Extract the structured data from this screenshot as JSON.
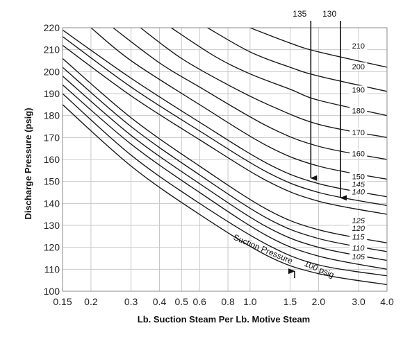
{
  "chart_data": {
    "type": "line",
    "title": "",
    "xlabel": "Lb. Suction Steam Per Lb. Motive Steam",
    "ylabel": "Discharge Pressure (psig)",
    "x_scale": "log",
    "xlim": [
      0.15,
      4.0
    ],
    "ylim": [
      100,
      220
    ],
    "grid": true,
    "x_ticks": [
      {
        "v": 0.15,
        "label": "0.15"
      },
      {
        "v": 0.2,
        "label": "0.2"
      },
      {
        "v": 0.3,
        "label": "0.3"
      },
      {
        "v": 0.4,
        "label": "0.4"
      },
      {
        "v": 0.5,
        "label": "0.5"
      },
      {
        "v": 0.6,
        "label": "0.6"
      },
      {
        "v": 0.8,
        "label": "0.8"
      },
      {
        "v": 1.0,
        "label": "1.0"
      },
      {
        "v": 1.5,
        "label": "1.5"
      },
      {
        "v": 2.0,
        "label": "2.0"
      },
      {
        "v": 3.0,
        "label": "3.0"
      },
      {
        "v": 4.0,
        "label": "4.0"
      }
    ],
    "y_ticks": [
      100,
      110,
      120,
      130,
      140,
      150,
      160,
      170,
      180,
      190,
      200,
      210,
      220
    ],
    "series": [
      {
        "name": "100",
        "points": [
          [
            0.15,
            185
          ],
          [
            0.3,
            157
          ],
          [
            0.6,
            135
          ],
          [
            1.2,
            116
          ],
          [
            2.0,
            108
          ],
          [
            4.0,
            103
          ]
        ]
      },
      {
        "name": "105",
        "points": [
          [
            0.15,
            190
          ],
          [
            0.3,
            162
          ],
          [
            0.6,
            140
          ],
          [
            1.2,
            121
          ],
          [
            2.0,
            112
          ],
          [
            4.0,
            107
          ]
        ]
      },
      {
        "name": "110",
        "points": [
          [
            0.15,
            194
          ],
          [
            0.3,
            167
          ],
          [
            0.6,
            145
          ],
          [
            1.2,
            125
          ],
          [
            2.0,
            116
          ],
          [
            4.0,
            110
          ]
        ]
      },
      {
        "name": "115",
        "points": [
          [
            0.15,
            198
          ],
          [
            0.3,
            171
          ],
          [
            0.6,
            149
          ],
          [
            1.2,
            129
          ],
          [
            2.0,
            120
          ],
          [
            4.0,
            114
          ]
        ]
      },
      {
        "name": "120",
        "points": [
          [
            0.15,
            202
          ],
          [
            0.3,
            175
          ],
          [
            0.6,
            153
          ],
          [
            1.2,
            133
          ],
          [
            2.0,
            124
          ],
          [
            4.0,
            118
          ]
        ]
      },
      {
        "name": "125",
        "points": [
          [
            0.15,
            206
          ],
          [
            0.3,
            179
          ],
          [
            0.6,
            157
          ],
          [
            1.2,
            137
          ],
          [
            2.0,
            128
          ],
          [
            4.0,
            122
          ]
        ]
      },
      {
        "name": "140",
        "points": [
          [
            0.15,
            212
          ],
          [
            0.3,
            189
          ],
          [
            0.6,
            169
          ],
          [
            1.2,
            150
          ],
          [
            2.0,
            141
          ],
          [
            4.0,
            135
          ]
        ]
      },
      {
        "name": "145",
        "points": [
          [
            0.15,
            216
          ],
          [
            0.3,
            193
          ],
          [
            0.6,
            173
          ],
          [
            1.2,
            154
          ],
          [
            2.0,
            145
          ],
          [
            4.0,
            139
          ]
        ]
      },
      {
        "name": "150",
        "points": [
          [
            0.15,
            219
          ],
          [
            0.3,
            197
          ],
          [
            0.6,
            177
          ],
          [
            1.2,
            158
          ],
          [
            2.0,
            149
          ],
          [
            4.0,
            143
          ]
        ]
      },
      {
        "name": "160",
        "points": [
          [
            0.2,
            220
          ],
          [
            0.3,
            205
          ],
          [
            0.6,
            185
          ],
          [
            1.2,
            166
          ],
          [
            2.0,
            157
          ],
          [
            4.0,
            151
          ]
        ]
      },
      {
        "name": "170",
        "points": [
          [
            0.25,
            220
          ],
          [
            0.4,
            204
          ],
          [
            0.6,
            193
          ],
          [
            1.2,
            175
          ],
          [
            2.0,
            166
          ],
          [
            4.0,
            160
          ]
        ]
      },
      {
        "name": "180",
        "points": [
          [
            0.33,
            220
          ],
          [
            0.5,
            206
          ],
          [
            0.8,
            194
          ],
          [
            1.2,
            185
          ],
          [
            2.0,
            176
          ],
          [
            4.0,
            170
          ]
        ]
      },
      {
        "name": "190",
        "points": [
          [
            0.45,
            220
          ],
          [
            0.7,
            207
          ],
          [
            1.0,
            199
          ],
          [
            1.5,
            192
          ],
          [
            2.0,
            187
          ],
          [
            4.0,
            180
          ]
        ]
      },
      {
        "name": "200",
        "points": [
          [
            0.65,
            220
          ],
          [
            1.0,
            209
          ],
          [
            1.5,
            202
          ],
          [
            2.0,
            198
          ],
          [
            4.0,
            191
          ]
        ]
      },
      {
        "name": "210",
        "points": [
          [
            1.0,
            220
          ],
          [
            1.5,
            213
          ],
          [
            2.0,
            209
          ],
          [
            4.0,
            202
          ]
        ]
      }
    ],
    "curve_labels": [
      {
        "text": "210",
        "x": 2.8,
        "y": 210.5
      },
      {
        "text": "200",
        "x": 2.8,
        "y": 201
      },
      {
        "text": "190",
        "x": 2.8,
        "y": 190.5
      },
      {
        "text": "180",
        "x": 2.8,
        "y": 181
      },
      {
        "text": "170",
        "x": 2.8,
        "y": 171
      },
      {
        "text": "160",
        "x": 2.8,
        "y": 161.5
      },
      {
        "text": "150",
        "x": 2.8,
        "y": 151
      },
      {
        "text": "145",
        "x": 2.8,
        "y": 147.5
      },
      {
        "text": "140",
        "x": 2.8,
        "y": 144
      },
      {
        "text": "125",
        "x": 2.8,
        "y": 131
      },
      {
        "text": "120",
        "x": 2.8,
        "y": 127.5
      },
      {
        "text": "115",
        "x": 2.8,
        "y": 123.5
      },
      {
        "text": "110",
        "x": 2.8,
        "y": 118.5
      },
      {
        "text": "105",
        "x": 2.8,
        "y": 114.5
      }
    ],
    "annotations": {
      "suction_label": "Suction Pressure",
      "suction_value": "100 psig",
      "arrow_135": {
        "label": "135",
        "x": 1.85,
        "from_y": 220,
        "to_y": 149
      },
      "arrow_130": {
        "label": "130",
        "x": 2.5,
        "from_y": 220,
        "to_y": 140
      },
      "arrow_100": {
        "x": 1.57,
        "from_y": 106,
        "to_y": 111
      }
    }
  }
}
